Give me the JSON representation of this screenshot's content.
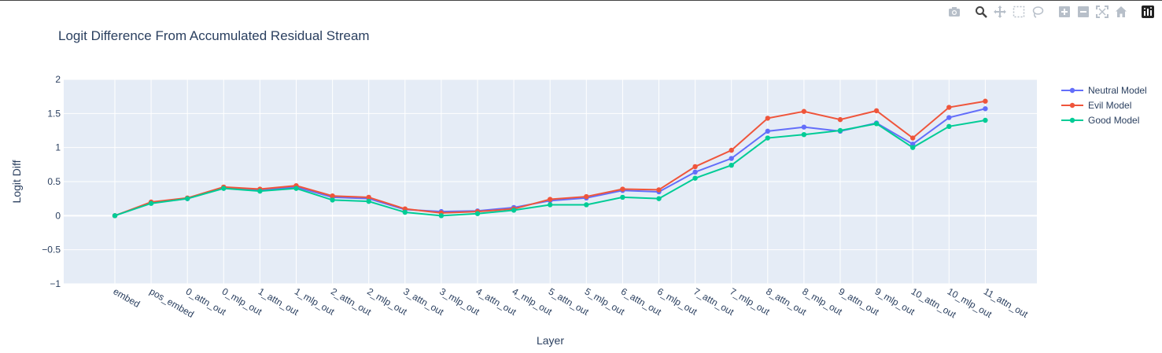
{
  "colors": {
    "plot_bg": "#e5ecf6",
    "grid": "#ffffff",
    "text": "#2a3f5f",
    "modebar_icon": "#b7bfc9",
    "modebar_active": "#444444"
  },
  "modebar": {
    "icons": [
      "camera-icon",
      "zoom-icon",
      "pan-icon",
      "box-select-icon",
      "lasso-icon",
      "zoom-in-icon",
      "zoom-out-icon",
      "autoscale-icon",
      "reset-axes-icon",
      "plotly-logo-icon"
    ]
  },
  "chart_data": {
    "type": "line",
    "title": "Logit Difference From Accumulated Residual Stream",
    "xlabel": "Layer",
    "ylabel": "Logit Diff",
    "ylim": [
      -1,
      2
    ],
    "yticks": [
      -1,
      -0.5,
      0,
      0.5,
      1,
      1.5,
      2
    ],
    "ytick_labels": [
      "−1",
      "−0.5",
      "0",
      "0.5",
      "1",
      "1.5",
      "2"
    ],
    "grid": true,
    "legend_position": "right",
    "categories": [
      "embed",
      "pos_embed",
      "0_attn_out",
      "0_mlp_out",
      "1_attn_out",
      "1_mlp_out",
      "2_attn_out",
      "2_mlp_out",
      "3_attn_out",
      "3_mlp_out",
      "4_attn_out",
      "4_mlp_out",
      "5_attn_out",
      "5_mlp_out",
      "6_attn_out",
      "6_mlp_out",
      "7_attn_out",
      "7_mlp_out",
      "8_attn_out",
      "8_mlp_out",
      "9_attn_out",
      "9_mlp_out",
      "10_attn_out",
      "10_mlp_out",
      "11_attn_out"
    ],
    "series": [
      {
        "name": "Neutral Model",
        "color": "#636efa",
        "values": [
          0.0,
          0.19,
          0.25,
          0.41,
          0.37,
          0.42,
          0.27,
          0.25,
          0.09,
          0.06,
          0.07,
          0.12,
          0.22,
          0.26,
          0.37,
          0.35,
          0.64,
          0.84,
          1.24,
          1.3,
          1.24,
          1.36,
          1.05,
          1.44,
          1.57
        ]
      },
      {
        "name": "Evil Model",
        "color": "#ef553b",
        "values": [
          0.0,
          0.2,
          0.26,
          0.42,
          0.39,
          0.44,
          0.29,
          0.27,
          0.1,
          0.04,
          0.06,
          0.1,
          0.24,
          0.28,
          0.39,
          0.38,
          0.72,
          0.96,
          1.43,
          1.53,
          1.41,
          1.54,
          1.14,
          1.59,
          1.68
        ]
      },
      {
        "name": "Good Model",
        "color": "#00cc96",
        "values": [
          0.0,
          0.18,
          0.25,
          0.4,
          0.36,
          0.4,
          0.23,
          0.21,
          0.05,
          0.0,
          0.03,
          0.08,
          0.16,
          0.16,
          0.27,
          0.25,
          0.55,
          0.74,
          1.14,
          1.19,
          1.25,
          1.35,
          1.0,
          1.31,
          1.4
        ]
      }
    ]
  }
}
